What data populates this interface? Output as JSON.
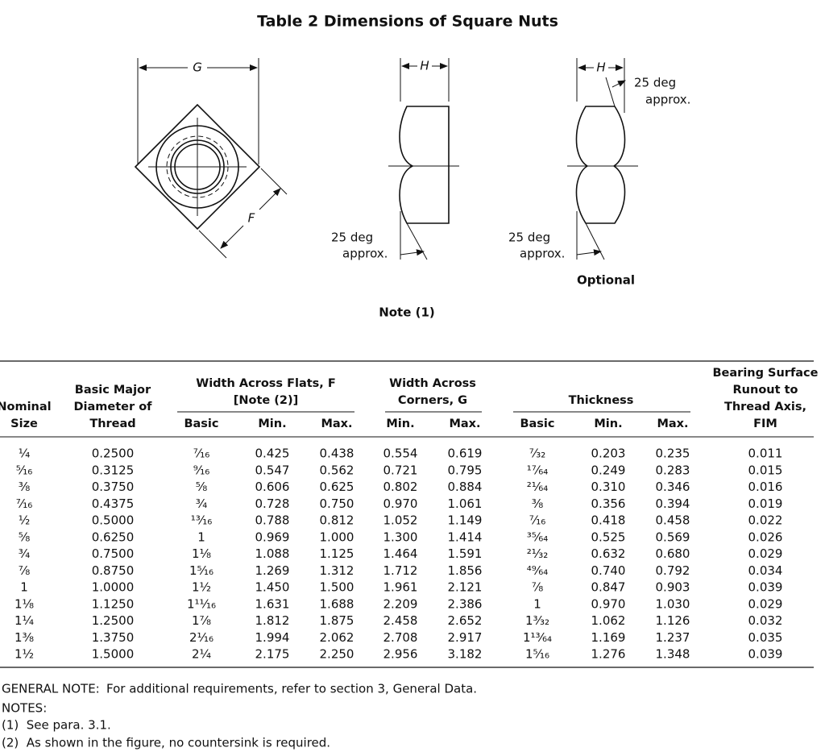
{
  "title": "Table 2   Dimensions of Square Nuts",
  "figure": {
    "top_view": {
      "g": "G",
      "f": "F"
    },
    "side_view": {
      "h": "H",
      "angle": "25 deg",
      "approx": "approx."
    },
    "optional_view": {
      "h": "H",
      "angle_top": "25 deg",
      "approx_top": "approx.",
      "angle": "25 deg",
      "approx": "approx.",
      "caption": "Optional"
    },
    "note": "Note (1)"
  },
  "table": {
    "headers": {
      "nominal": [
        "Nominal",
        "Size"
      ],
      "major": [
        "Basic Major",
        "Diameter of",
        "Thread"
      ],
      "flats": [
        "Width Across Flats, F",
        "[Note (2)]"
      ],
      "corners": [
        "Width Across",
        "Corners, G"
      ],
      "thickness": [
        "Thickness"
      ],
      "runout": [
        "Bearing Surface",
        "Runout to",
        "Thread Axis,",
        "FIM"
      ],
      "sub": [
        "Basic",
        "Min.",
        "Max.",
        "Min.",
        "Max.",
        "Basic",
        "Min.",
        "Max."
      ]
    },
    "rows": [
      [
        "¹⁄₄",
        "0.2500",
        "⁷⁄₁₆",
        "0.425",
        "0.438",
        "0.554",
        "0.619",
        "⁷⁄₃₂",
        "0.203",
        "0.235",
        "0.011"
      ],
      [
        "⁵⁄₁₆",
        "0.3125",
        "⁹⁄₁₆",
        "0.547",
        "0.562",
        "0.721",
        "0.795",
        "¹⁷⁄₆₄",
        "0.249",
        "0.283",
        "0.015"
      ],
      [
        "³⁄₈",
        "0.3750",
        "⁵⁄₈",
        "0.606",
        "0.625",
        "0.802",
        "0.884",
        "²¹⁄₆₄",
        "0.310",
        "0.346",
        "0.016"
      ],
      [
        "⁷⁄₁₆",
        "0.4375",
        "³⁄₄",
        "0.728",
        "0.750",
        "0.970",
        "1.061",
        "³⁄₈",
        "0.356",
        "0.394",
        "0.019"
      ],
      [
        "¹⁄₂",
        "0.5000",
        "¹³⁄₁₆",
        "0.788",
        "0.812",
        "1.052",
        "1.149",
        "⁷⁄₁₆",
        "0.418",
        "0.458",
        "0.022"
      ],
      [
        "⁵⁄₈",
        "0.6250",
        "1",
        "0.969",
        "1.000",
        "1.300",
        "1.414",
        "³⁵⁄₆₄",
        "0.525",
        "0.569",
        "0.026"
      ],
      [
        "³⁄₄",
        "0.7500",
        "1¹⁄₈",
        "1.088",
        "1.125",
        "1.464",
        "1.591",
        "²¹⁄₃₂",
        "0.632",
        "0.680",
        "0.029"
      ],
      [
        "⁷⁄₈",
        "0.8750",
        "1⁵⁄₁₆",
        "1.269",
        "1.312",
        "1.712",
        "1.856",
        "⁴⁹⁄₆₄",
        "0.740",
        "0.792",
        "0.034"
      ],
      [
        "1",
        "1.0000",
        "1¹⁄₂",
        "1.450",
        "1.500",
        "1.961",
        "2.121",
        "⁷⁄₈",
        "0.847",
        "0.903",
        "0.039"
      ],
      [
        "1¹⁄₈",
        "1.1250",
        "1¹¹⁄₁₆",
        "1.631",
        "1.688",
        "2.209",
        "2.386",
        "1",
        "0.970",
        "1.030",
        "0.029"
      ],
      [
        "1¹⁄₄",
        "1.2500",
        "1⁷⁄₈",
        "1.812",
        "1.875",
        "2.458",
        "2.652",
        "1³⁄₃₂",
        "1.062",
        "1.126",
        "0.032"
      ],
      [
        "1³⁄₈",
        "1.3750",
        "2¹⁄₁₆",
        "1.994",
        "2.062",
        "2.708",
        "2.917",
        "1¹³⁄₆₄",
        "1.169",
        "1.237",
        "0.035"
      ],
      [
        "1¹⁄₂",
        "1.5000",
        "2¹⁄₄",
        "2.175",
        "2.250",
        "2.956",
        "3.182",
        "1⁵⁄₁₆",
        "1.276",
        "1.348",
        "0.039"
      ]
    ]
  },
  "notes": {
    "general_label": "GENERAL NOTE:",
    "general": "For additional requirements, refer to section 3, General Data.",
    "title": "NOTES:",
    "items": [
      "(1)  See para. 3.1.",
      "(2)  As shown in the figure, no countersink is required."
    ]
  }
}
